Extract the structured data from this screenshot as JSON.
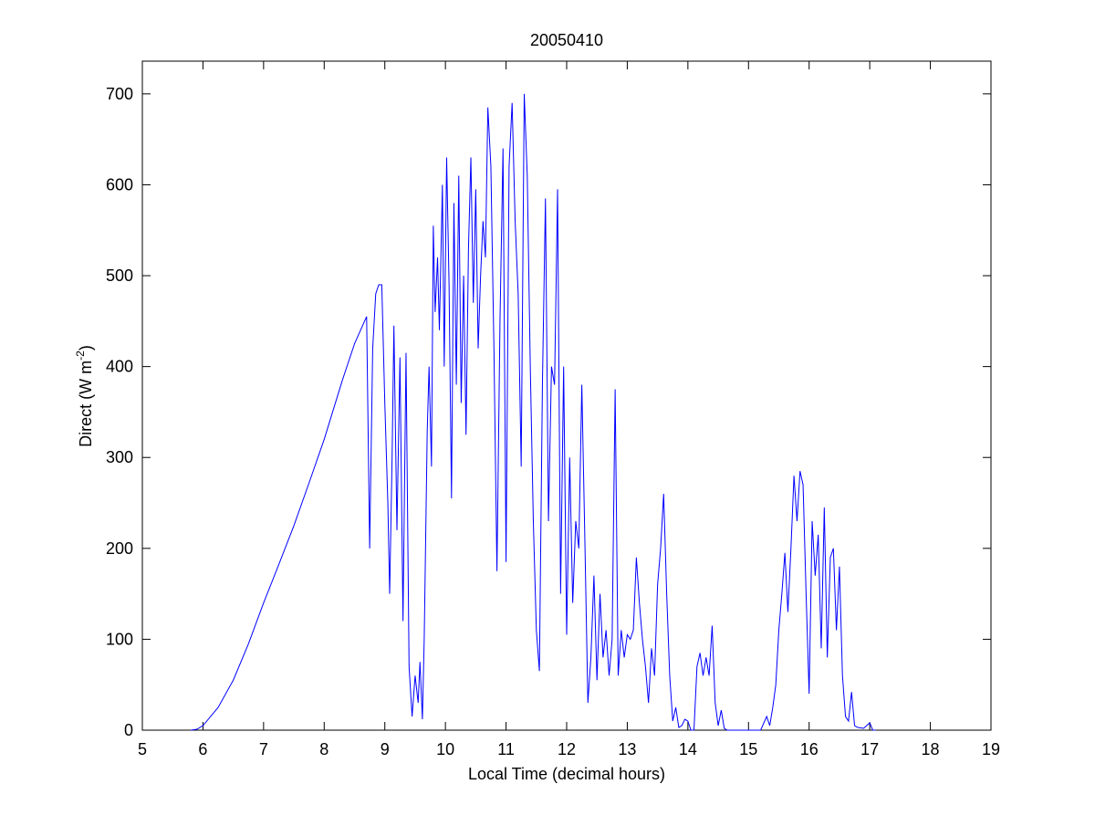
{
  "chart_data": {
    "type": "line",
    "title": "20050410",
    "xlabel": "Local Time (decimal hours)",
    "ylabel": [
      "Direct (W m",
      "-2",
      ")"
    ],
    "xlim": [
      5,
      19
    ],
    "xticks": [
      5,
      6,
      7,
      8,
      9,
      10,
      11,
      12,
      13,
      14,
      15,
      16,
      17,
      18,
      19
    ],
    "ylim": [
      0,
      736
    ],
    "yticks": [
      0,
      100,
      200,
      300,
      400,
      500,
      600,
      700
    ],
    "grid": false,
    "series": [
      {
        "color": "#0000ff",
        "x": [
          5.8,
          5.9,
          6.0,
          6.25,
          6.5,
          6.75,
          7.0,
          7.25,
          7.5,
          7.75,
          8.0,
          8.3,
          8.5,
          8.7,
          8.75,
          8.8,
          8.85,
          8.9,
          8.95,
          9.0,
          9.05,
          9.08,
          9.12,
          9.15,
          9.2,
          9.25,
          9.3,
          9.35,
          9.4,
          9.45,
          9.5,
          9.55,
          9.58,
          9.62,
          9.65,
          9.7,
          9.73,
          9.77,
          9.8,
          9.83,
          9.87,
          9.9,
          9.95,
          9.98,
          10.02,
          10.06,
          10.1,
          10.14,
          10.18,
          10.22,
          10.26,
          10.3,
          10.34,
          10.38,
          10.42,
          10.46,
          10.5,
          10.54,
          10.58,
          10.62,
          10.66,
          10.7,
          10.75,
          10.8,
          10.85,
          10.9,
          10.95,
          11.0,
          11.05,
          11.1,
          11.15,
          11.2,
          11.25,
          11.3,
          11.35,
          11.4,
          11.45,
          11.5,
          11.55,
          11.6,
          11.65,
          11.7,
          11.75,
          11.8,
          11.85,
          11.9,
          11.95,
          12.0,
          12.05,
          12.1,
          12.15,
          12.2,
          12.25,
          12.3,
          12.35,
          12.4,
          12.45,
          12.5,
          12.55,
          12.6,
          12.65,
          12.7,
          12.75,
          12.8,
          12.85,
          12.9,
          12.95,
          13.0,
          13.05,
          13.1,
          13.15,
          13.2,
          13.25,
          13.3,
          13.35,
          13.4,
          13.45,
          13.5,
          13.55,
          13.6,
          13.65,
          13.7,
          13.75,
          13.8,
          13.85,
          13.9,
          13.95,
          14.0,
          14.05,
          14.1,
          14.15,
          14.2,
          14.25,
          14.3,
          14.35,
          14.4,
          14.45,
          14.5,
          14.55,
          14.6,
          14.65,
          15.2,
          15.3,
          15.35,
          15.4,
          15.45,
          15.5,
          15.55,
          15.6,
          15.65,
          15.7,
          15.75,
          15.8,
          15.85,
          15.9,
          15.95,
          16.0,
          16.05,
          16.1,
          16.15,
          16.2,
          16.25,
          16.3,
          16.35,
          16.4,
          16.45,
          16.5,
          16.55,
          16.6,
          16.65,
          16.7,
          16.75,
          16.8,
          16.9,
          17.0,
          17.05,
          17.1
        ],
        "values": [
          0,
          1,
          5,
          25,
          55,
          95,
          140,
          182,
          225,
          272,
          320,
          385,
          425,
          455,
          200,
          420,
          480,
          490,
          490,
          360,
          250,
          150,
          300,
          445,
          220,
          410,
          120,
          415,
          70,
          15,
          60,
          30,
          75,
          12,
          100,
          330,
          400,
          290,
          555,
          460,
          520,
          440,
          600,
          400,
          630,
          490,
          255,
          580,
          380,
          610,
          360,
          500,
          325,
          530,
          630,
          470,
          595,
          420,
          500,
          560,
          520,
          685,
          620,
          420,
          175,
          450,
          640,
          185,
          620,
          690,
          560,
          480,
          290,
          700,
          610,
          400,
          230,
          110,
          65,
          380,
          585,
          230,
          400,
          380,
          595,
          150,
          400,
          105,
          300,
          140,
          230,
          200,
          380,
          210,
          30,
          80,
          170,
          55,
          150,
          80,
          110,
          60,
          100,
          375,
          60,
          110,
          80,
          105,
          100,
          110,
          190,
          140,
          100,
          70,
          30,
          90,
          60,
          160,
          200,
          260,
          150,
          60,
          10,
          25,
          3,
          5,
          12,
          10,
          0,
          0,
          70,
          85,
          60,
          80,
          60,
          115,
          30,
          5,
          22,
          2,
          0,
          0,
          15,
          5,
          25,
          50,
          110,
          150,
          195,
          130,
          200,
          280,
          230,
          285,
          270,
          150,
          40,
          230,
          170,
          215,
          90,
          245,
          80,
          190,
          200,
          110,
          180,
          60,
          15,
          10,
          42,
          5,
          3,
          2,
          8,
          0,
          0
        ]
      }
    ]
  }
}
